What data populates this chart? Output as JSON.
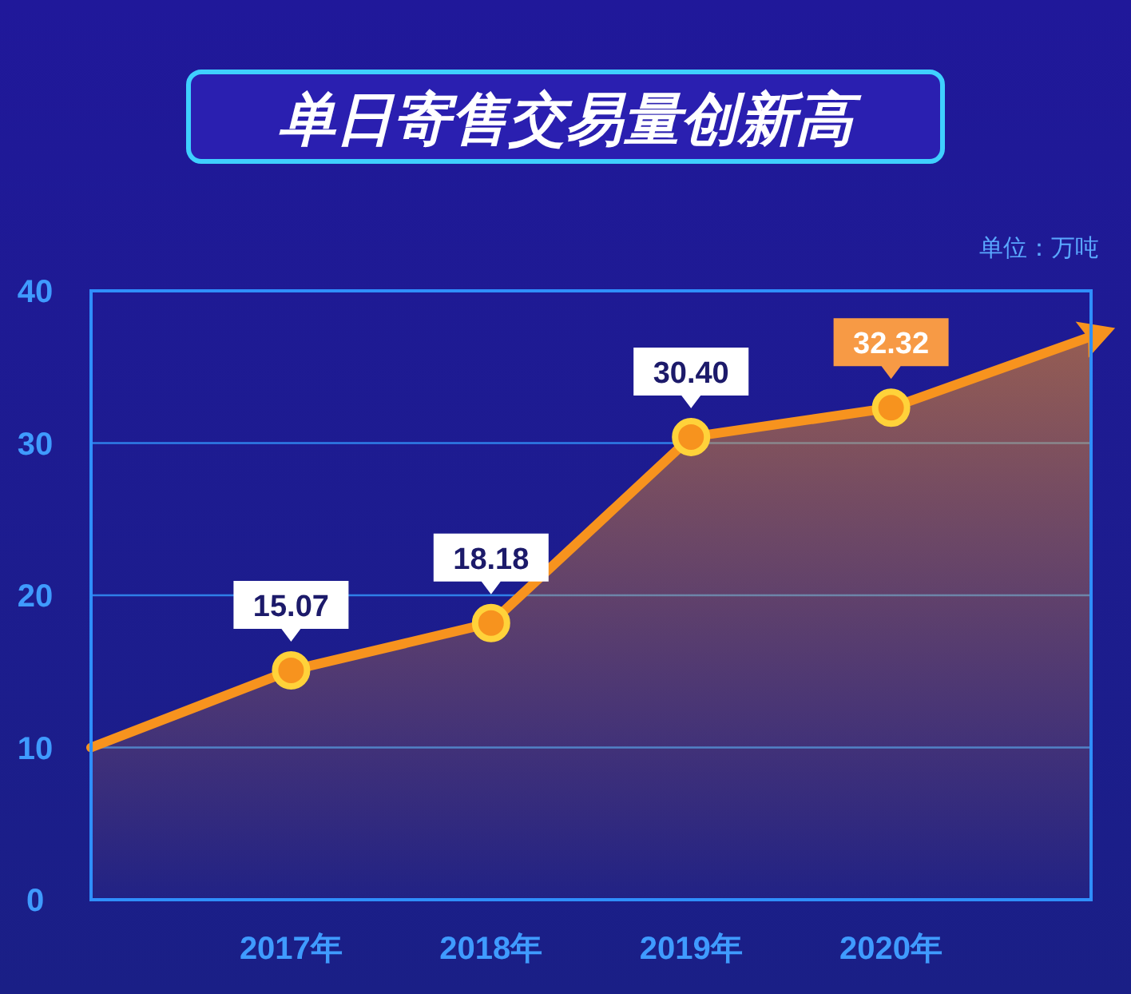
{
  "chart_data": {
    "type": "area",
    "title": "单日寄售交易量创新高",
    "annotations": [
      "单位：万吨"
    ],
    "categories": [
      null,
      "2017年",
      "2018年",
      "2019年",
      "2020年",
      null
    ],
    "series": [
      {
        "color": "#f7931e",
        "values": [
          10,
          15.07,
          18.18,
          30.4,
          32.32,
          37
        ],
        "value_labels": [
          null,
          "15.07",
          "18.18",
          "30.40",
          "32.32",
          null
        ]
      }
    ],
    "ylim": [
      0,
      40
    ],
    "yticks": [
      0,
      10,
      20,
      30,
      40
    ],
    "grid": "y",
    "marker": "circle",
    "line_style": "solid"
  }
}
